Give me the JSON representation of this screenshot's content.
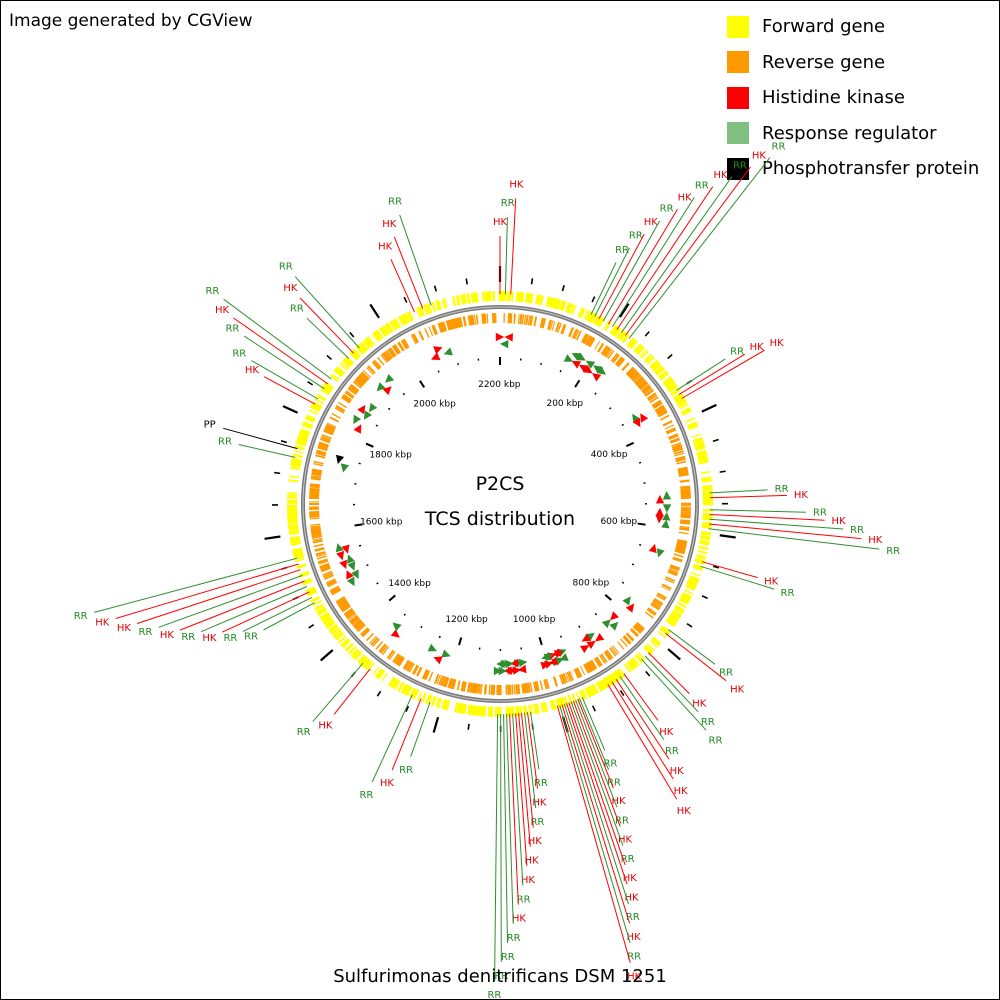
{
  "credit": "Image generated by CGView",
  "legend": [
    {
      "label": "Forward gene",
      "color": "#ffff00"
    },
    {
      "label": "Reverse gene",
      "color": "#ff9900"
    },
    {
      "label": "Histidine kinase",
      "color": "#ff0000"
    },
    {
      "label": "Response regulator",
      "color": "#80c080"
    },
    {
      "label": "Phosphotransfer protein",
      "color": "#000000"
    }
  ],
  "title_line1": "P2CS",
  "title_line2": "TCS distribution",
  "organism": "Sulfurimonas denitrificans DSM 1251",
  "ruler_labels": [
    "200 kbp",
    "400 kbp",
    "600 kbp",
    "800 kbp",
    "1000 kbp",
    "1200 kbp",
    "1400 kbp",
    "1600 kbp",
    "1800 kbp",
    "2000 kbp",
    "2200 kbp"
  ],
  "genome_size_kbp": 2202,
  "features": [
    {
      "t": "HK",
      "kbp": 0
    },
    {
      "t": "RR",
      "kbp": 9
    },
    {
      "t": "HK",
      "kbp": 18
    },
    {
      "t": "RR",
      "kbp": 157
    },
    {
      "t": "RR",
      "kbp": 164
    },
    {
      "t": "HK",
      "kbp": 172
    },
    {
      "t": "RR",
      "kbp": 180
    },
    {
      "t": "HK",
      "kbp": 190
    },
    {
      "t": "RR",
      "kbp": 198
    },
    {
      "t": "HK",
      "kbp": 207
    },
    {
      "t": "RR",
      "kbp": 216
    },
    {
      "t": "HK",
      "kbp": 224
    },
    {
      "t": "RR",
      "kbp": 232
    },
    {
      "t": "RR",
      "kbp": 350
    },
    {
      "t": "HK",
      "kbp": 358
    },
    {
      "t": "HK",
      "kbp": 366
    },
    {
      "t": "RR",
      "kbp": 532
    },
    {
      "t": "HK",
      "kbp": 540
    },
    {
      "t": "RR",
      "kbp": 560
    },
    {
      "t": "HK",
      "kbp": 568
    },
    {
      "t": "RR",
      "kbp": 576
    },
    {
      "t": "HK",
      "kbp": 584
    },
    {
      "t": "RR",
      "kbp": 592
    },
    {
      "t": "HK",
      "kbp": 648
    },
    {
      "t": "RR",
      "kbp": 656
    },
    {
      "t": "RR",
      "kbp": 775
    },
    {
      "t": "HK",
      "kbp": 783
    },
    {
      "t": "HK",
      "kbp": 826
    },
    {
      "t": "RR",
      "kbp": 834
    },
    {
      "t": "RR",
      "kbp": 842
    },
    {
      "t": "HK",
      "kbp": 880
    },
    {
      "t": "RR",
      "kbp": 888
    },
    {
      "t": "HK",
      "kbp": 896
    },
    {
      "t": "HK",
      "kbp": 904
    },
    {
      "t": "HK",
      "kbp": 912
    },
    {
      "t": "RR",
      "kbp": 960
    },
    {
      "t": "RR",
      "kbp": 965
    },
    {
      "t": "HK",
      "kbp": 968
    },
    {
      "t": "RR",
      "kbp": 972
    },
    {
      "t": "HK",
      "kbp": 976
    },
    {
      "t": "RR",
      "kbp": 980
    },
    {
      "t": "HK",
      "kbp": 984
    },
    {
      "t": "HK",
      "kbp": 988
    },
    {
      "t": "RR",
      "kbp": 992
    },
    {
      "t": "HK",
      "kbp": 996
    },
    {
      "t": "RR",
      "kbp": 1000
    },
    {
      "t": "HK",
      "kbp": 1004
    },
    {
      "t": "RR",
      "kbp": 1050
    },
    {
      "t": "HK",
      "kbp": 1055
    },
    {
      "t": "RR",
      "kbp": 1060
    },
    {
      "t": "HK",
      "kbp": 1065
    },
    {
      "t": "HK",
      "kbp": 1070
    },
    {
      "t": "HK",
      "kbp": 1075
    },
    {
      "t": "RR",
      "kbp": 1080
    },
    {
      "t": "HK",
      "kbp": 1085
    },
    {
      "t": "RR",
      "kbp": 1090
    },
    {
      "t": "RR",
      "kbp": 1095
    },
    {
      "t": "RR",
      "kbp": 1100
    },
    {
      "t": "RR",
      "kbp": 1105
    },
    {
      "t": "RR",
      "kbp": 1220
    },
    {
      "t": "HK",
      "kbp": 1236
    },
    {
      "t": "RR",
      "kbp": 1252
    },
    {
      "t": "HK",
      "kbp": 1335
    },
    {
      "t": "RR",
      "kbp": 1350
    },
    {
      "t": "RR",
      "kbp": 1480
    },
    {
      "t": "RR",
      "kbp": 1490
    },
    {
      "t": "HK",
      "kbp": 1500
    },
    {
      "t": "RR",
      "kbp": 1510
    },
    {
      "t": "HK",
      "kbp": 1520
    },
    {
      "t": "RR",
      "kbp": 1530
    },
    {
      "t": "HK",
      "kbp": 1540
    },
    {
      "t": "HK",
      "kbp": 1550
    },
    {
      "t": "RR",
      "kbp": 1560
    },
    {
      "t": "RR",
      "kbp": 1730
    },
    {
      "t": "PP",
      "kbp": 1745
    },
    {
      "t": "HK",
      "kbp": 1825
    },
    {
      "t": "RR",
      "kbp": 1835
    },
    {
      "t": "RR",
      "kbp": 1855
    },
    {
      "t": "HK",
      "kbp": 1865
    },
    {
      "t": "RR",
      "kbp": 1875
    },
    {
      "t": "RR",
      "kbp": 1920
    },
    {
      "t": "HK",
      "kbp": 1932
    },
    {
      "t": "RR",
      "kbp": 1945
    },
    {
      "t": "HK",
      "kbp": 2055
    },
    {
      "t": "HK",
      "kbp": 2070
    },
    {
      "t": "RR",
      "kbp": 2085
    }
  ]
}
